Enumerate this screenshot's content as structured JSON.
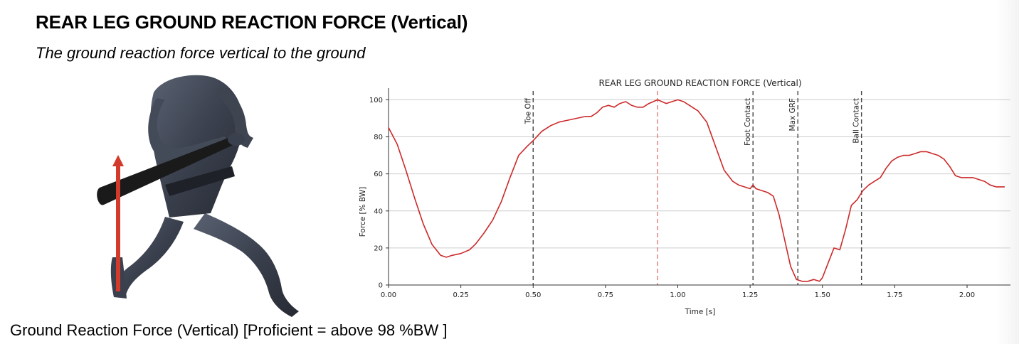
{
  "header": {
    "title": "REAR LEG GROUND REACTION FORCE (Vertical)",
    "subtitle": "The ground reaction force vertical to the ground"
  },
  "footer": {
    "note": "Ground Reaction Force (Vertical) [Proficient = above 98 %BW ]"
  },
  "colors": {
    "curve": "#cc2a2a",
    "force_arrow": "#d23b2b",
    "event_line": "#444444",
    "peak_line": "#e07070",
    "grid": "#cccccc"
  },
  "figure": {
    "icon": "batter-figure-icon",
    "arrow_icon": "vertical-force-arrow-icon"
  },
  "chart_data": {
    "type": "line",
    "title": "REAR LEG GROUND REACTION FORCE (Vertical)",
    "xlabel": "Time [s]",
    "ylabel": "Force [% BW]",
    "xlim": [
      0,
      2.15
    ],
    "ylim": [
      0,
      104
    ],
    "xticks": [
      0.0,
      0.25,
      0.5,
      0.75,
      1.0,
      1.25,
      1.5,
      1.75,
      2.0
    ],
    "xtick_labels": [
      "0.00",
      "0.25",
      "0.50",
      "0.75",
      "1.00",
      "1.25",
      "1.50",
      "1.75",
      "2.00"
    ],
    "yticks": [
      0,
      20,
      40,
      60,
      80,
      100
    ],
    "ytick_labels": [
      "0",
      "20",
      "40",
      "60",
      "80",
      "100"
    ],
    "grid": "horizontal",
    "events": [
      {
        "label": "Toe Off",
        "x": 0.5
      },
      {
        "label": "Foot Contact",
        "x": 1.26
      },
      {
        "label": "Max GRF",
        "x": 1.415
      },
      {
        "label": "Ball Contact",
        "x": 1.635
      }
    ],
    "peak_marker_x": 0.93,
    "series": [
      {
        "x": [
          0.0,
          0.03,
          0.06,
          0.09,
          0.12,
          0.15,
          0.18,
          0.2,
          0.22,
          0.25,
          0.28,
          0.3,
          0.33,
          0.36,
          0.39,
          0.42,
          0.45,
          0.48,
          0.5,
          0.53,
          0.56,
          0.59,
          0.62,
          0.65,
          0.68,
          0.7,
          0.72,
          0.74,
          0.76,
          0.78,
          0.8,
          0.82,
          0.84,
          0.86,
          0.88,
          0.9,
          0.93,
          0.96,
          0.98,
          1.0,
          1.02,
          1.04,
          1.07,
          1.1,
          1.13,
          1.16,
          1.19,
          1.21,
          1.23,
          1.25,
          1.26,
          1.27,
          1.29,
          1.31,
          1.33,
          1.35,
          1.37,
          1.39,
          1.41,
          1.43,
          1.45,
          1.47,
          1.49,
          1.5,
          1.52,
          1.54,
          1.56,
          1.58,
          1.6,
          1.62,
          1.64,
          1.66,
          1.68,
          1.7,
          1.72,
          1.74,
          1.76,
          1.78,
          1.8,
          1.82,
          1.84,
          1.86,
          1.88,
          1.9,
          1.92,
          1.94,
          1.96,
          1.98,
          2.0,
          2.02,
          2.04,
          2.06,
          2.08,
          2.1,
          2.13
        ],
        "y": [
          85,
          76,
          62,
          47,
          33,
          22,
          16,
          15,
          16,
          17,
          19,
          22,
          28,
          35,
          45,
          58,
          70,
          75,
          78,
          83,
          86,
          88,
          89,
          90,
          91,
          91,
          93,
          96,
          97,
          96,
          98,
          99,
          97,
          96,
          96,
          98,
          100,
          98,
          99,
          100,
          99,
          97,
          94,
          88,
          75,
          62,
          56,
          54,
          53,
          52,
          54,
          52,
          51,
          50,
          48,
          38,
          24,
          10,
          3,
          2,
          2,
          3,
          2,
          4,
          12,
          20,
          19,
          30,
          43,
          46,
          51,
          54,
          56,
          58,
          63,
          67,
          69,
          70,
          70,
          71,
          72,
          72,
          71,
          70,
          68,
          64,
          59,
          58,
          58,
          58,
          57,
          56,
          54,
          53,
          53
        ]
      }
    ]
  }
}
